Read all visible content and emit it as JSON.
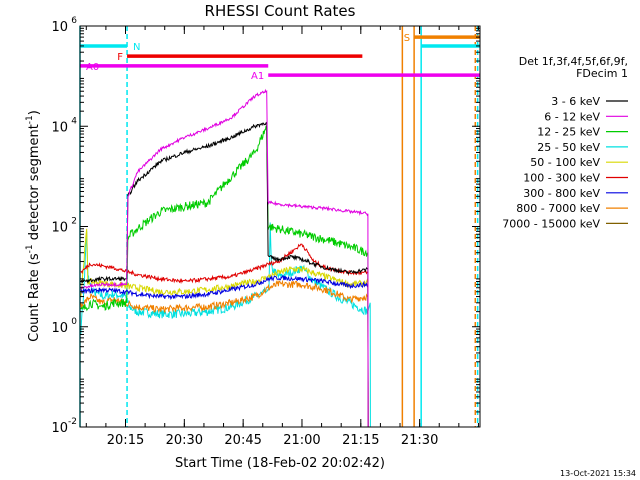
{
  "chart_data": {
    "type": "line",
    "title": "RHESSI Count Rates",
    "xlabel": "Start Time (18-Feb-02 20:02:42)",
    "ylabel_parts": [
      "Count Rate (s",
      "-1",
      " detector segment",
      "-1",
      ")"
    ],
    "ylim": [
      0.01,
      1000000
    ],
    "xlim_minutes": [
      20.0566,
      21.7566
    ],
    "x_ticks": [
      {
        "t": 20.25,
        "label": "20:15"
      },
      {
        "t": 20.5,
        "label": "20:30"
      },
      {
        "t": 20.75,
        "label": "20:45"
      },
      {
        "t": 21.0,
        "label": "21:00"
      },
      {
        "t": 21.25,
        "label": "21:15"
      },
      {
        "t": 21.5,
        "label": "21:30"
      }
    ],
    "y_ticks": [
      {
        "v": 0.01,
        "base": "10",
        "exp": "-2"
      },
      {
        "v": 1,
        "base": "10",
        "exp": "0"
      },
      {
        "v": 100,
        "base": "10",
        "exp": "2"
      },
      {
        "v": 10000,
        "base": "10",
        "exp": "4"
      },
      {
        "v": 1000000,
        "base": "10",
        "exp": "6"
      }
    ],
    "legend": {
      "position": "top-right",
      "header": [
        "Det 1f,3f,4f,5f,6f,9f,",
        "FDecim 1"
      ],
      "entries": [
        {
          "label": "3 - 6 keV",
          "color": "#000000"
        },
        {
          "label": "6 - 12 keV",
          "color": "#e000e0"
        },
        {
          "label": "12 - 25 keV",
          "color": "#00cc00"
        },
        {
          "label": "25 - 50 keV",
          "color": "#00e0e0"
        },
        {
          "label": "50 - 100 keV",
          "color": "#d8d800"
        },
        {
          "label": "100 - 300 keV",
          "color": "#e00000"
        },
        {
          "label": "300 - 800 keV",
          "color": "#0000e0"
        },
        {
          "label": "800 - 7000 keV",
          "color": "#f08000"
        },
        {
          "label": "7000 - 15000 keV",
          "color": "#806000"
        }
      ]
    },
    "flag_bars": [
      {
        "label": "N",
        "color": "#00e8f0",
        "t0": 20.0566,
        "t1": 20.2566,
        "v": 400000,
        "label_side": "right"
      },
      {
        "label": "N",
        "color": "#00e8f0",
        "t0": 21.5066,
        "t1": 21.7566,
        "v": 400000,
        "label_side": "none"
      },
      {
        "label": "F",
        "color": "#ee0000",
        "t0": 20.2566,
        "t1": 21.2566,
        "v": 250000,
        "label_side": "left"
      },
      {
        "label": "A0",
        "color": "#ee00ee",
        "t0": 20.0566,
        "t1": 20.8566,
        "v": 160000,
        "label_side": "right"
      },
      {
        "label": "A1",
        "color": "#ee00ee",
        "t0": 20.8566,
        "t1": 21.7566,
        "v": 105000,
        "label_side": "left"
      },
      {
        "label": "S",
        "color": "#f08000",
        "t0": 21.4766,
        "t1": 21.7566,
        "v": 600000,
        "label_side": "left"
      }
    ],
    "vlines": [
      {
        "t": 20.0566,
        "color": "#00e8f0",
        "style": "solid"
      },
      {
        "t": 20.2566,
        "color": "#00e8f0",
        "style": "dashed"
      },
      {
        "t": 21.4266,
        "color": "#f08000",
        "style": "solid"
      },
      {
        "t": 21.4766,
        "color": "#f08000",
        "style": "solid"
      },
      {
        "t": 21.5066,
        "color": "#00e8f0",
        "style": "solid"
      },
      {
        "t": 21.7366,
        "color": "#f08000",
        "style": "dashed"
      },
      {
        "t": 21.7466,
        "color": "#00e8f0",
        "style": "dashed"
      }
    ],
    "series": [
      {
        "color": "#00e0e0",
        "noise": 0.35,
        "points": [
          [
            20.06,
            0.7
          ],
          [
            20.065,
            2
          ],
          [
            20.07,
            3
          ],
          [
            20.085,
            80
          ],
          [
            20.09,
            10
          ],
          [
            20.11,
            5
          ],
          [
            20.16,
            4
          ],
          [
            20.2,
            4.5
          ],
          [
            20.25,
            4
          ],
          [
            20.265,
            2.5
          ],
          [
            20.3,
            2
          ],
          [
            20.4,
            1.8
          ],
          [
            20.5,
            1.8
          ],
          [
            20.6,
            2
          ],
          [
            20.7,
            2.5
          ],
          [
            20.8,
            4
          ],
          [
            20.85,
            5
          ],
          [
            20.86,
            6
          ],
          [
            20.865,
            120
          ],
          [
            20.87,
            15
          ],
          [
            20.9,
            10
          ],
          [
            20.95,
            12
          ],
          [
            21.0,
            15
          ],
          [
            21.05,
            8
          ],
          [
            21.15,
            4
          ],
          [
            21.2,
            3
          ],
          [
            21.28,
            2
          ],
          [
            21.29,
            3
          ]
        ]
      },
      {
        "color": "#f08000",
        "noise": 0.28,
        "points": [
          [
            20.06,
            2.5
          ],
          [
            20.1,
            4
          ],
          [
            20.15,
            3
          ],
          [
            20.2,
            3.5
          ],
          [
            20.25,
            3
          ],
          [
            20.3,
            2.5
          ],
          [
            20.4,
            2.2
          ],
          [
            20.5,
            2.4
          ],
          [
            20.6,
            2.5
          ],
          [
            20.7,
            3
          ],
          [
            20.8,
            4
          ],
          [
            20.86,
            6
          ],
          [
            20.9,
            7
          ],
          [
            21.0,
            7
          ],
          [
            21.1,
            5.5
          ],
          [
            21.15,
            4.5
          ],
          [
            21.2,
            3.5
          ],
          [
            21.28,
            4
          ]
        ]
      },
      {
        "color": "#00cc00",
        "noise": 0.35,
        "points": [
          [
            20.06,
            2
          ],
          [
            20.1,
            3
          ],
          [
            20.15,
            2.5
          ],
          [
            20.2,
            3
          ],
          [
            20.255,
            3
          ],
          [
            20.26,
            60
          ],
          [
            20.3,
            90
          ],
          [
            20.4,
            200
          ],
          [
            20.5,
            250
          ],
          [
            20.6,
            300
          ],
          [
            20.7,
            1000
          ],
          [
            20.8,
            3000
          ],
          [
            20.85,
            10000
          ],
          [
            20.856,
            100
          ],
          [
            20.9,
            90
          ],
          [
            21.0,
            70
          ],
          [
            21.1,
            55
          ],
          [
            21.2,
            40
          ],
          [
            21.28,
            30
          ]
        ]
      },
      {
        "color": "#d8d800",
        "noise": 0.25,
        "points": [
          [
            20.06,
            4
          ],
          [
            20.085,
            90
          ],
          [
            20.09,
            8
          ],
          [
            20.2,
            7
          ],
          [
            20.3,
            6
          ],
          [
            20.4,
            5
          ],
          [
            20.5,
            5
          ],
          [
            20.6,
            5.5
          ],
          [
            20.7,
            6.5
          ],
          [
            20.8,
            8
          ],
          [
            20.86,
            10
          ],
          [
            20.9,
            12
          ],
          [
            20.95,
            14
          ],
          [
            21.0,
            14
          ],
          [
            21.1,
            10
          ],
          [
            21.2,
            7
          ],
          [
            21.28,
            7.5
          ]
        ]
      },
      {
        "color": "#0000e0",
        "noise": 0.18,
        "points": [
          [
            20.06,
            5
          ],
          [
            20.15,
            5.5
          ],
          [
            20.25,
            5
          ],
          [
            20.3,
            4.5
          ],
          [
            20.4,
            4
          ],
          [
            20.5,
            4
          ],
          [
            20.6,
            4.5
          ],
          [
            20.7,
            5.5
          ],
          [
            20.8,
            7
          ],
          [
            20.86,
            9
          ],
          [
            20.9,
            9.5
          ],
          [
            21.0,
            9
          ],
          [
            21.1,
            8
          ],
          [
            21.2,
            6.5
          ],
          [
            21.28,
            7
          ]
        ]
      },
      {
        "color": "#e00000",
        "noise": 0.15,
        "points": [
          [
            20.06,
            12
          ],
          [
            20.1,
            18
          ],
          [
            20.2,
            15
          ],
          [
            20.3,
            11
          ],
          [
            20.4,
            9
          ],
          [
            20.5,
            8
          ],
          [
            20.6,
            9
          ],
          [
            20.7,
            10
          ],
          [
            20.8,
            14
          ],
          [
            20.86,
            18
          ],
          [
            20.9,
            20
          ],
          [
            20.95,
            30
          ],
          [
            21.0,
            45
          ],
          [
            21.05,
            20
          ],
          [
            21.1,
            15
          ],
          [
            21.2,
            12
          ],
          [
            21.28,
            12
          ]
        ]
      },
      {
        "color": "#000000",
        "noise": 0.15,
        "points": [
          [
            20.06,
            8
          ],
          [
            20.15,
            9
          ],
          [
            20.25,
            9
          ],
          [
            20.255,
            9
          ],
          [
            20.26,
            400
          ],
          [
            20.3,
            800
          ],
          [
            20.4,
            2000
          ],
          [
            20.5,
            3000
          ],
          [
            20.6,
            4000
          ],
          [
            20.7,
            6000
          ],
          [
            20.8,
            10000
          ],
          [
            20.85,
            12000
          ],
          [
            20.856,
            25
          ],
          [
            20.9,
            22
          ],
          [
            20.95,
            25
          ],
          [
            21.0,
            22
          ],
          [
            21.05,
            18
          ],
          [
            21.1,
            15
          ],
          [
            21.2,
            12
          ],
          [
            21.28,
            14
          ]
        ]
      },
      {
        "color": "#e000e0",
        "noise": 0.12,
        "points": [
          [
            20.06,
            6
          ],
          [
            20.15,
            7
          ],
          [
            20.25,
            7
          ],
          [
            20.255,
            7
          ],
          [
            20.26,
            400
          ],
          [
            20.3,
            1200
          ],
          [
            20.4,
            3500
          ],
          [
            20.5,
            6000
          ],
          [
            20.6,
            9000
          ],
          [
            20.7,
            15000
          ],
          [
            20.8,
            40000
          ],
          [
            20.85,
            50000
          ],
          [
            20.856,
            300
          ],
          [
            20.9,
            280
          ],
          [
            21.0,
            250
          ],
          [
            21.1,
            230
          ],
          [
            21.2,
            200
          ],
          [
            21.28,
            180
          ]
        ]
      }
    ]
  },
  "footer": {
    "date": "13-Oct-2021 15:34"
  }
}
